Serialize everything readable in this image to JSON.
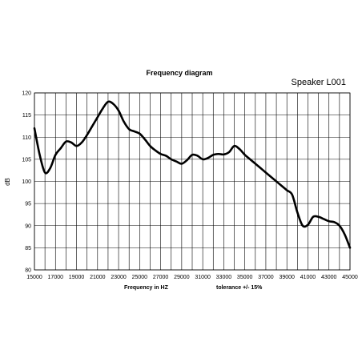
{
  "chart_data": {
    "type": "line",
    "title": "Frequency diagram",
    "subtitle": "Speaker L001",
    "xlabel": "Frequency in  HZ",
    "note": "tolerance +/- 15%",
    "ylabel": "dB",
    "xlim": [
      15000,
      45000
    ],
    "ylim": [
      80,
      120
    ],
    "grid": true,
    "x_ticks": [
      "15000",
      "17000",
      "19000",
      "21000",
      "23000",
      "25000",
      "27000",
      "29000",
      "31000",
      "33000",
      "35000",
      "37000",
      "39000",
      "41000",
      "43000",
      "45000"
    ],
    "y_ticks": [
      "80",
      "85",
      "90",
      "95",
      "100",
      "105",
      "110",
      "115",
      "120"
    ],
    "series": [
      {
        "x": [
          15000,
          15500,
          16000,
          16500,
          17000,
          17500,
          18000,
          18500,
          19000,
          19500,
          20000,
          20500,
          21000,
          21500,
          22000,
          22500,
          23000,
          23500,
          24000,
          24500,
          25000,
          25500,
          26000,
          26500,
          27000,
          27500,
          28000,
          28500,
          29000,
          29500,
          30000,
          30500,
          31000,
          31500,
          32000,
          32500,
          33000,
          33500,
          34000,
          34500,
          35000,
          35500,
          36000,
          36500,
          37000,
          37500,
          38000,
          38500,
          39000,
          39500,
          40000,
          40500,
          41000,
          41500,
          42000,
          42500,
          43000,
          43500,
          44000,
          44500,
          45000
        ],
        "y": [
          112,
          106,
          102,
          103,
          106,
          107.5,
          109,
          108.8,
          108,
          108.8,
          110.5,
          112.5,
          114.5,
          116.5,
          118,
          117.5,
          116,
          113.5,
          111.8,
          111.3,
          110.8,
          109.5,
          108,
          107,
          106.2,
          105.8,
          105,
          104.5,
          104,
          104.8,
          106,
          105.8,
          105,
          105.3,
          106,
          106.2,
          106.1,
          106.6,
          108,
          107.3,
          106,
          105,
          104,
          103,
          102,
          101,
          100,
          99,
          98,
          97,
          93,
          90,
          90.2,
          92,
          92,
          91.5,
          91,
          90.8,
          90,
          88,
          85
        ]
      }
    ]
  }
}
